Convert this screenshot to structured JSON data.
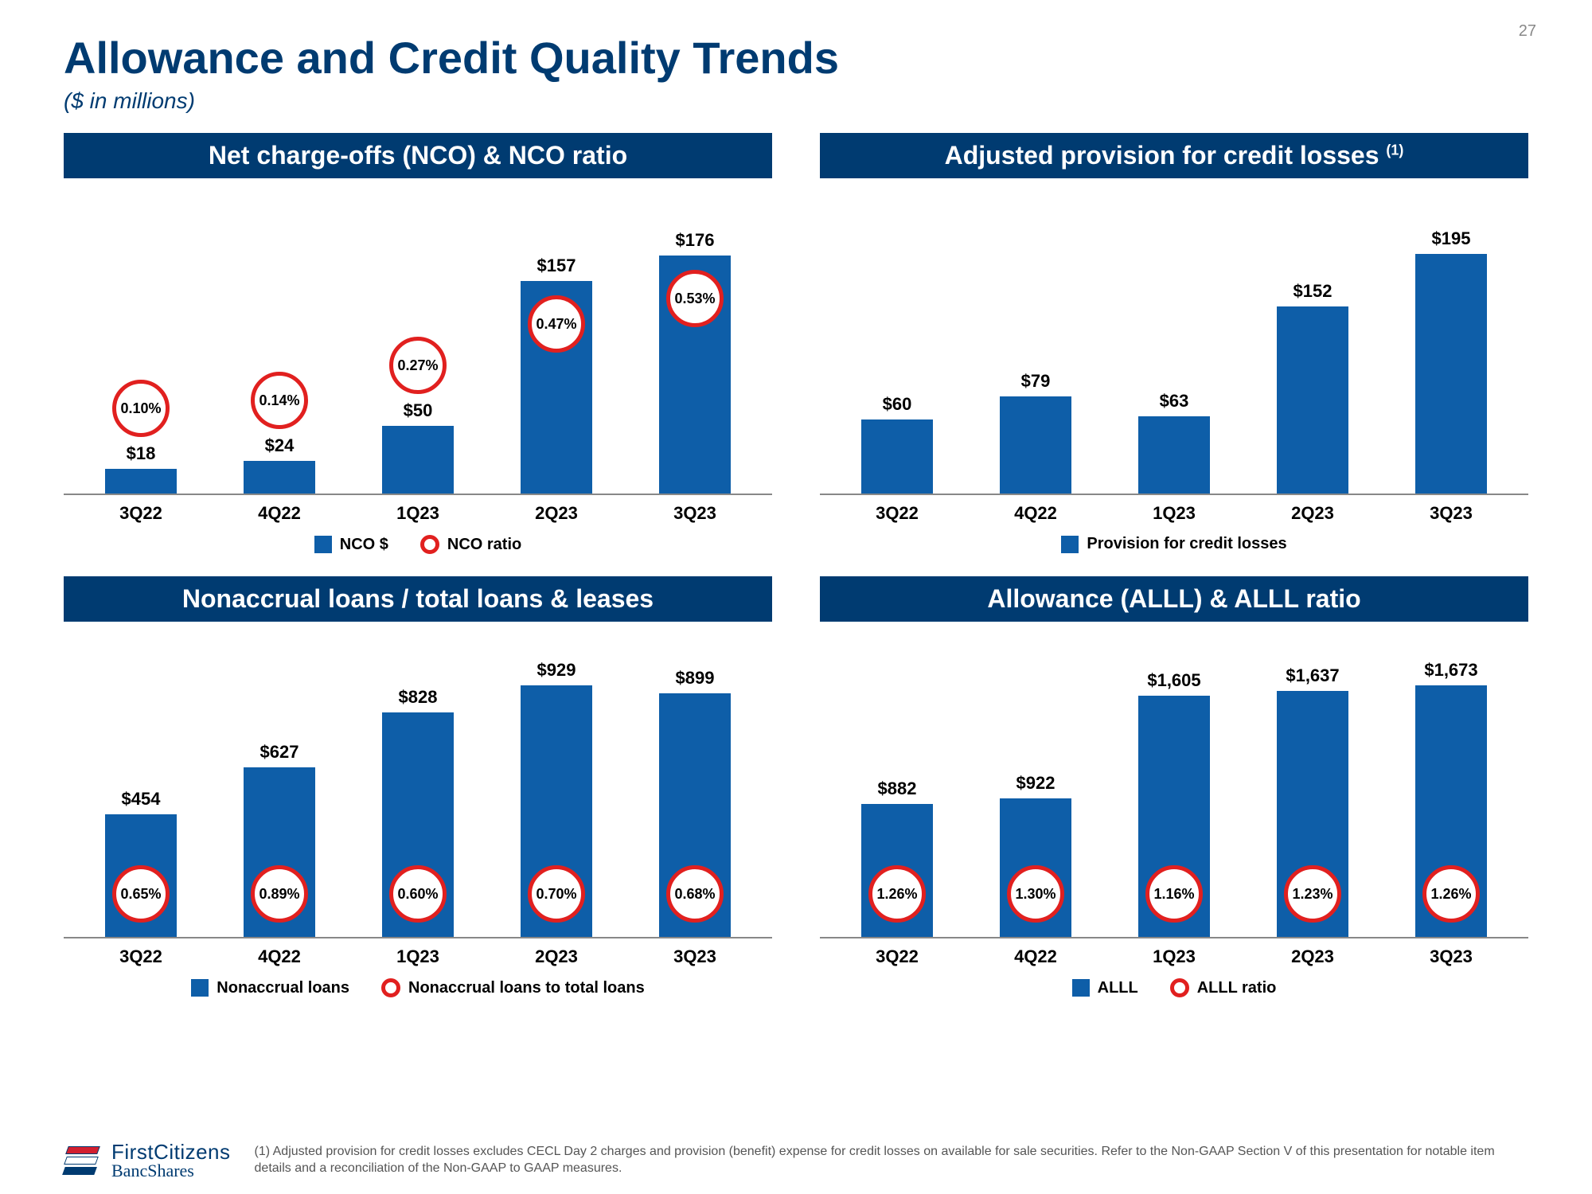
{
  "page_number": "27",
  "title": "Allowance and Credit Quality Trends",
  "subtitle": "($ in millions)",
  "categories": [
    "3Q22",
    "4Q22",
    "1Q23",
    "2Q23",
    "3Q23"
  ],
  "colors": {
    "bar": "#0e5ea8",
    "ring": "#e1201f",
    "header": "#003b71"
  },
  "panels": {
    "nco": {
      "header": "Net charge-offs (NCO) & NCO ratio",
      "max": 200,
      "bars": [
        {
          "label": "$18",
          "value": 18,
          "ratio": "0.10%",
          "ratio_pos": "above"
        },
        {
          "label": "$24",
          "value": 24,
          "ratio": "0.14%",
          "ratio_pos": "above"
        },
        {
          "label": "$50",
          "value": 50,
          "ratio": "0.27%",
          "ratio_pos": "above"
        },
        {
          "label": "$157",
          "value": 157,
          "ratio": "0.47%",
          "ratio_pos": "inside"
        },
        {
          "label": "$176",
          "value": 176,
          "ratio": "0.53%",
          "ratio_pos": "inside"
        }
      ],
      "legend": [
        {
          "type": "sq",
          "label": "NCO $"
        },
        {
          "type": "ring",
          "label": "NCO ratio"
        }
      ]
    },
    "provision": {
      "header": "Adjusted provision for credit losses ",
      "header_sup": "(1)",
      "max": 220,
      "bars": [
        {
          "label": "$60",
          "value": 60
        },
        {
          "label": "$79",
          "value": 79
        },
        {
          "label": "$63",
          "value": 63
        },
        {
          "label": "$152",
          "value": 152
        },
        {
          "label": "$195",
          "value": 195
        }
      ],
      "legend": [
        {
          "type": "sq",
          "label": "Provision for credit losses"
        }
      ]
    },
    "nonaccrual": {
      "header": "Nonaccrual loans / total loans & leases",
      "max": 1000,
      "bars": [
        {
          "label": "$454",
          "value": 454,
          "ratio": "0.65%",
          "ratio_pos": "bottom"
        },
        {
          "label": "$627",
          "value": 627,
          "ratio": "0.89%",
          "ratio_pos": "bottom"
        },
        {
          "label": "$828",
          "value": 828,
          "ratio": "0.60%",
          "ratio_pos": "bottom"
        },
        {
          "label": "$929",
          "value": 929,
          "ratio": "0.70%",
          "ratio_pos": "bottom"
        },
        {
          "label": "$899",
          "value": 899,
          "ratio": "0.68%",
          "ratio_pos": "bottom"
        }
      ],
      "legend": [
        {
          "type": "sq",
          "label": "Nonaccrual loans"
        },
        {
          "type": "ring",
          "label": "Nonaccrual loans to total loans"
        }
      ]
    },
    "alll": {
      "header": "Allowance (ALLL) & ALLL ratio",
      "max": 1800,
      "bars": [
        {
          "label": "$882",
          "value": 882,
          "ratio": "1.26%",
          "ratio_pos": "bottom"
        },
        {
          "label": "$922",
          "value": 922,
          "ratio": "1.30%",
          "ratio_pos": "bottom"
        },
        {
          "label": "$1,605",
          "value": 1605,
          "ratio": "1.16%",
          "ratio_pos": "bottom"
        },
        {
          "label": "$1,637",
          "value": 1637,
          "ratio": "1.23%",
          "ratio_pos": "bottom"
        },
        {
          "label": "$1,673",
          "value": 1673,
          "ratio": "1.26%",
          "ratio_pos": "bottom"
        }
      ],
      "legend": [
        {
          "type": "sq",
          "label": "ALLL"
        },
        {
          "type": "ring",
          "label": "ALLL ratio"
        }
      ]
    }
  },
  "logo": {
    "line1": "FirstCitizens",
    "line2": "BancShares"
  },
  "footnote": "(1) Adjusted provision for credit losses excludes CECL Day 2 charges and provision (benefit) expense for credit losses on available for sale securities. Refer to the Non-GAAP Section V of this presentation for notable item details and a reconciliation of the Non-GAAP to GAAP measures."
}
